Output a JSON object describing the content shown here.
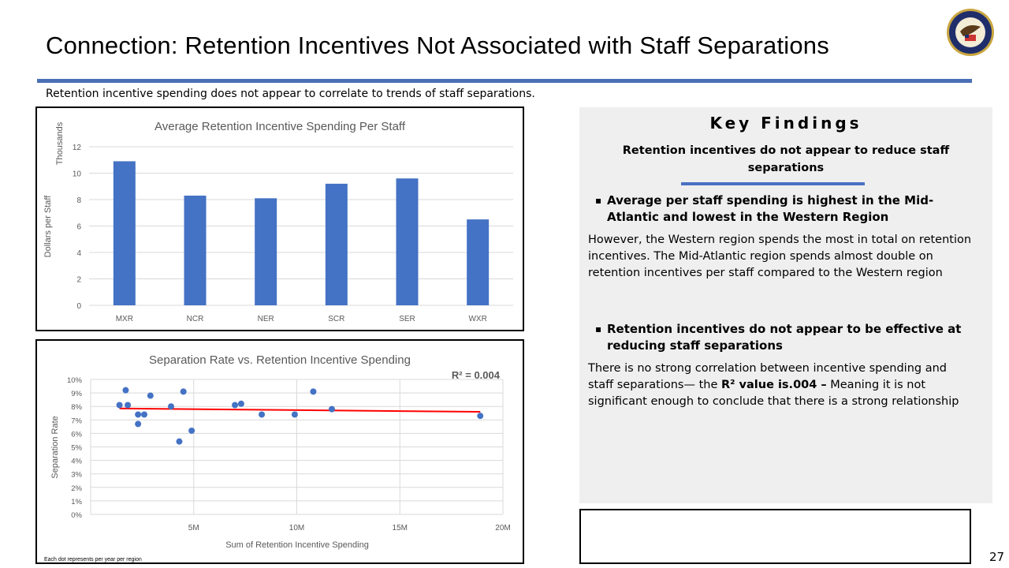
{
  "header": {
    "title": "Connection: Retention Incentives Not Associated with Staff Separations",
    "subtitle": "Retention incentive spending does not appear to correlate to trends of staff separations.",
    "logo_text": "Department of Justice - Federal Bureau of Prisons"
  },
  "colors": {
    "accent": "#4472c4",
    "rule": "#4a6fb5",
    "trend": "#ff0000",
    "panel": "#efefef"
  },
  "chart_data": [
    {
      "type": "bar",
      "title": "Average Retention Incentive Spending Per Staff",
      "xlabel": "",
      "ylabel": "Dollars per Staff",
      "units_label": "Thousands",
      "categories": [
        "MXR",
        "NCR",
        "NER",
        "SCR",
        "SER",
        "WXR"
      ],
      "values": [
        10.9,
        8.3,
        8.1,
        9.2,
        9.6,
        6.5
      ],
      "ylim": [
        0,
        12
      ],
      "yticks": [
        "0",
        "2",
        "4",
        "6",
        "8",
        "10",
        "12"
      ],
      "grid": true
    },
    {
      "type": "scatter",
      "title": "Separation Rate vs. Retention Incentive Spending",
      "xlabel": "Sum of Retention Incentive Spending",
      "ylabel": "Separation Rate",
      "annotation": "R² = 0.004",
      "note": "Each dot represents per year per region",
      "xlim": [
        0,
        20
      ],
      "ylim": [
        0,
        10
      ],
      "xticks": [
        "5M",
        "10M",
        "15M",
        "20M"
      ],
      "yticks": [
        "0%",
        "1%",
        "2%",
        "3%",
        "4%",
        "5%",
        "6%",
        "7%",
        "8%",
        "9%",
        "10%"
      ],
      "points": [
        [
          1.4,
          8.1
        ],
        [
          1.7,
          9.2
        ],
        [
          1.8,
          8.1
        ],
        [
          2.3,
          7.4
        ],
        [
          2.3,
          6.7
        ],
        [
          2.6,
          7.4
        ],
        [
          2.9,
          8.8
        ],
        [
          3.9,
          8.0
        ],
        [
          4.3,
          5.4
        ],
        [
          4.5,
          9.1
        ],
        [
          4.9,
          6.2
        ],
        [
          7.0,
          8.1
        ],
        [
          7.3,
          8.2
        ],
        [
          8.3,
          7.4
        ],
        [
          9.9,
          7.4
        ],
        [
          10.8,
          9.1
        ],
        [
          11.7,
          7.8
        ],
        [
          18.9,
          7.3
        ]
      ],
      "trendline": [
        [
          1.4,
          7.85
        ],
        [
          18.9,
          7.6
        ]
      ],
      "grid": true
    }
  ],
  "findings": {
    "heading": "Key Findings",
    "subheading": "Retention incentives do not appear to reduce staff separations",
    "bullet1": "Average per staff spending is highest in the Mid-Atlantic and lowest in the Western Region",
    "para1": "However, the Western region spends the most in total on retention incentives. The Mid-Atlantic region spends almost double on retention incentives per staff compared to the Western region",
    "bullet2": "Retention incentives do not appear to be effective at reducing staff separations",
    "para2_a": "There is no strong correlation between incentive spending and staff separations— the ",
    "para2_b": "R² value is.004 –",
    "para2_c": " Meaning it is not significant enough to conclude that there is a strong relationship"
  },
  "page_number": "27"
}
